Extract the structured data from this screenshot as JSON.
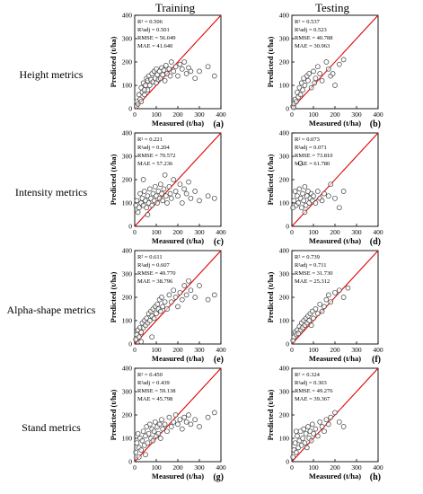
{
  "column_headers": [
    "Training",
    "Testing"
  ],
  "row_labels": [
    "Height metrics",
    "Intensity metrics",
    "Alpha-shape metrics",
    "Stand metrics"
  ],
  "axes": {
    "xlabel": "Measured (t/ha)",
    "ylabel": "Predicted (t/ha)",
    "xlim": [
      0,
      400
    ],
    "ylim": [
      0,
      400
    ],
    "ticks": [
      "0",
      "100",
      "200",
      "300",
      "400"
    ]
  },
  "colors": {
    "marker_edge": "#444444",
    "marker_fill": "#ffffff",
    "line": "#e00000"
  },
  "chart_data": [
    {
      "type": "scatter",
      "panel": "(a)",
      "stats": [
        "R² = 0.506",
        "R²adj = 0.501",
        "RMSE = 56.049",
        "MAE = 41.640"
      ],
      "reference_line": "1:1",
      "points": [
        [
          10,
          30
        ],
        [
          20,
          60
        ],
        [
          25,
          40
        ],
        [
          30,
          90
        ],
        [
          35,
          70
        ],
        [
          40,
          110
        ],
        [
          45,
          60
        ],
        [
          50,
          100
        ],
        [
          55,
          130
        ],
        [
          60,
          80
        ],
        [
          60,
          120
        ],
        [
          65,
          140
        ],
        [
          70,
          100
        ],
        [
          75,
          125
        ],
        [
          80,
          150
        ],
        [
          85,
          115
        ],
        [
          90,
          160
        ],
        [
          95,
          130
        ],
        [
          100,
          170
        ],
        [
          100,
          110
        ],
        [
          105,
          145
        ],
        [
          110,
          125
        ],
        [
          115,
          160
        ],
        [
          120,
          130
        ],
        [
          125,
          175
        ],
        [
          130,
          145
        ],
        [
          135,
          165
        ],
        [
          140,
          120
        ],
        [
          145,
          185
        ],
        [
          150,
          150
        ],
        [
          160,
          170
        ],
        [
          165,
          140
        ],
        [
          170,
          200
        ],
        [
          180,
          160
        ],
        [
          190,
          180
        ],
        [
          200,
          140
        ],
        [
          210,
          190
        ],
        [
          220,
          170
        ],
        [
          230,
          200
        ],
        [
          240,
          150
        ],
        [
          250,
          175
        ],
        [
          260,
          160
        ],
        [
          280,
          130
        ],
        [
          300,
          160
        ],
        [
          340,
          180
        ],
        [
          370,
          140
        ],
        [
          8,
          10
        ],
        [
          15,
          20
        ],
        [
          30,
          30
        ],
        [
          45,
          80
        ]
      ]
    },
    {
      "type": "scatter",
      "panel": "(b)",
      "stats": [
        "R² = 0.537",
        "R²adj = 0.523",
        "RMSE = 40.788",
        "MAE = 30.963"
      ],
      "reference_line": "1:1",
      "points": [
        [
          5,
          10
        ],
        [
          10,
          20
        ],
        [
          15,
          40
        ],
        [
          20,
          30
        ],
        [
          25,
          70
        ],
        [
          30,
          50
        ],
        [
          35,
          90
        ],
        [
          40,
          60
        ],
        [
          45,
          110
        ],
        [
          50,
          80
        ],
        [
          55,
          130
        ],
        [
          60,
          100
        ],
        [
          70,
          140
        ],
        [
          75,
          120
        ],
        [
          80,
          150
        ],
        [
          90,
          90
        ],
        [
          100,
          160
        ],
        [
          105,
          110
        ],
        [
          110,
          130
        ],
        [
          120,
          180
        ],
        [
          130,
          150
        ],
        [
          140,
          120
        ],
        [
          160,
          200
        ],
        [
          170,
          170
        ],
        [
          180,
          140
        ],
        [
          190,
          150
        ],
        [
          200,
          100
        ],
        [
          220,
          190
        ],
        [
          240,
          210
        ],
        [
          8,
          5
        ]
      ]
    },
    {
      "type": "scatter",
      "panel": "(c)",
      "stats": [
        "R² = 0.221",
        "R²adj = 0.204",
        "RMSE = 70.572",
        "MAE = 57.236"
      ],
      "reference_line": "1:1",
      "points": [
        [
          5,
          90
        ],
        [
          10,
          110
        ],
        [
          20,
          80
        ],
        [
          25,
          140
        ],
        [
          30,
          100
        ],
        [
          35,
          120
        ],
        [
          40,
          90
        ],
        [
          45,
          150
        ],
        [
          50,
          110
        ],
        [
          55,
          80
        ],
        [
          60,
          130
        ],
        [
          65,
          100
        ],
        [
          70,
          160
        ],
        [
          75,
          120
        ],
        [
          80,
          90
        ],
        [
          85,
          140
        ],
        [
          90,
          110
        ],
        [
          95,
          170
        ],
        [
          100,
          130
        ],
        [
          105,
          100
        ],
        [
          110,
          150
        ],
        [
          115,
          120
        ],
        [
          120,
          180
        ],
        [
          125,
          140
        ],
        [
          130,
          110
        ],
        [
          135,
          160
        ],
        [
          140,
          220
        ],
        [
          145,
          130
        ],
        [
          150,
          100
        ],
        [
          160,
          170
        ],
        [
          165,
          140
        ],
        [
          170,
          120
        ],
        [
          180,
          200
        ],
        [
          190,
          150
        ],
        [
          200,
          130
        ],
        [
          210,
          180
        ],
        [
          220,
          100
        ],
        [
          230,
          160
        ],
        [
          240,
          140
        ],
        [
          250,
          190
        ],
        [
          260,
          120
        ],
        [
          280,
          150
        ],
        [
          300,
          110
        ],
        [
          340,
          130
        ],
        [
          370,
          120
        ],
        [
          15,
          60
        ],
        [
          40,
          200
        ],
        [
          60,
          50
        ]
      ]
    },
    {
      "type": "scatter",
      "panel": "(d)",
      "stats": [
        "R² = 0.073",
        "R²adj = 0.071",
        "RMSE = 73.810",
        "MAE = 61.780"
      ],
      "reference_line": "1:1",
      "points": [
        [
          5,
          80
        ],
        [
          10,
          110
        ],
        [
          15,
          150
        ],
        [
          20,
          90
        ],
        [
          25,
          130
        ],
        [
          30,
          100
        ],
        [
          35,
          160
        ],
        [
          40,
          120
        ],
        [
          45,
          80
        ],
        [
          50,
          140
        ],
        [
          55,
          110
        ],
        [
          60,
          170
        ],
        [
          65,
          90
        ],
        [
          70,
          130
        ],
        [
          75,
          150
        ],
        [
          80,
          100
        ],
        [
          85,
          120
        ],
        [
          90,
          140
        ],
        [
          95,
          110
        ],
        [
          100,
          130
        ],
        [
          110,
          100
        ],
        [
          120,
          150
        ],
        [
          130,
          120
        ],
        [
          140,
          110
        ],
        [
          150,
          140
        ],
        [
          170,
          130
        ],
        [
          180,
          180
        ],
        [
          200,
          120
        ],
        [
          220,
          80
        ],
        [
          240,
          150
        ],
        [
          40,
          270
        ],
        [
          60,
          60
        ]
      ]
    },
    {
      "type": "scatter",
      "panel": "(e)",
      "stats": [
        "R² = 0.611",
        "R²adj = 0.607",
        "RMSE = 49.770",
        "MAE = 38.796"
      ],
      "reference_line": "1:1",
      "points": [
        [
          5,
          20
        ],
        [
          10,
          40
        ],
        [
          15,
          60
        ],
        [
          20,
          30
        ],
        [
          25,
          70
        ],
        [
          30,
          50
        ],
        [
          35,
          90
        ],
        [
          40,
          70
        ],
        [
          45,
          100
        ],
        [
          50,
          80
        ],
        [
          55,
          110
        ],
        [
          60,
          90
        ],
        [
          65,
          130
        ],
        [
          70,
          100
        ],
        [
          75,
          140
        ],
        [
          80,
          120
        ],
        [
          85,
          150
        ],
        [
          90,
          110
        ],
        [
          95,
          160
        ],
        [
          100,
          130
        ],
        [
          105,
          170
        ],
        [
          110,
          150
        ],
        [
          115,
          190
        ],
        [
          120,
          140
        ],
        [
          125,
          200
        ],
        [
          130,
          160
        ],
        [
          140,
          180
        ],
        [
          150,
          150
        ],
        [
          160,
          210
        ],
        [
          170,
          180
        ],
        [
          180,
          230
        ],
        [
          190,
          200
        ],
        [
          200,
          160
        ],
        [
          210,
          220
        ],
        [
          220,
          190
        ],
        [
          230,
          250
        ],
        [
          240,
          210
        ],
        [
          250,
          270
        ],
        [
          260,
          230
        ],
        [
          280,
          200
        ],
        [
          300,
          250
        ],
        [
          340,
          190
        ],
        [
          370,
          210
        ],
        [
          30,
          10
        ],
        [
          80,
          30
        ]
      ]
    },
    {
      "type": "scatter",
      "panel": "(f)",
      "stats": [
        "R² = 0.739",
        "R²adj = 0.711",
        "RMSE = 31.730",
        "MAE = 25.312"
      ],
      "reference_line": "1:1",
      "points": [
        [
          5,
          15
        ],
        [
          10,
          30
        ],
        [
          15,
          50
        ],
        [
          20,
          40
        ],
        [
          25,
          60
        ],
        [
          30,
          45
        ],
        [
          35,
          75
        ],
        [
          40,
          60
        ],
        [
          45,
          90
        ],
        [
          50,
          70
        ],
        [
          55,
          100
        ],
        [
          60,
          80
        ],
        [
          65,
          110
        ],
        [
          70,
          90
        ],
        [
          75,
          120
        ],
        [
          80,
          100
        ],
        [
          85,
          130
        ],
        [
          90,
          80
        ],
        [
          95,
          140
        ],
        [
          100,
          110
        ],
        [
          110,
          150
        ],
        [
          120,
          130
        ],
        [
          130,
          170
        ],
        [
          140,
          140
        ],
        [
          150,
          160
        ],
        [
          160,
          190
        ],
        [
          170,
          210
        ],
        [
          180,
          180
        ],
        [
          200,
          220
        ],
        [
          220,
          230
        ],
        [
          240,
          200
        ],
        [
          260,
          240
        ]
      ]
    },
    {
      "type": "scatter",
      "panel": "(g)",
      "stats": [
        "R² = 0.450",
        "R²adj = 0.439",
        "RMSE = 59.138",
        "MAE = 45.798"
      ],
      "reference_line": "1:1",
      "points": [
        [
          5,
          40
        ],
        [
          10,
          80
        ],
        [
          15,
          120
        ],
        [
          20,
          60
        ],
        [
          25,
          100
        ],
        [
          30,
          50
        ],
        [
          35,
          90
        ],
        [
          40,
          130
        ],
        [
          45,
          70
        ],
        [
          50,
          110
        ],
        [
          55,
          150
        ],
        [
          60,
          80
        ],
        [
          65,
          120
        ],
        [
          70,
          160
        ],
        [
          75,
          100
        ],
        [
          80,
          140
        ],
        [
          85,
          90
        ],
        [
          90,
          130
        ],
        [
          95,
          170
        ],
        [
          100,
          110
        ],
        [
          105,
          150
        ],
        [
          110,
          120
        ],
        [
          115,
          160
        ],
        [
          120,
          100
        ],
        [
          125,
          180
        ],
        [
          130,
          140
        ],
        [
          140,
          160
        ],
        [
          150,
          130
        ],
        [
          160,
          190
        ],
        [
          170,
          150
        ],
        [
          180,
          170
        ],
        [
          190,
          200
        ],
        [
          200,
          160
        ],
        [
          210,
          180
        ],
        [
          220,
          140
        ],
        [
          230,
          190
        ],
        [
          240,
          170
        ],
        [
          250,
          200
        ],
        [
          260,
          160
        ],
        [
          280,
          180
        ],
        [
          300,
          150
        ],
        [
          340,
          190
        ],
        [
          370,
          210
        ],
        [
          20,
          20
        ],
        [
          50,
          30
        ]
      ]
    },
    {
      "type": "scatter",
      "panel": "(h)",
      "stats": [
        "R² = 0.324",
        "R²adj = 0.303",
        "RMSE = 49.276",
        "MAE = 39.367"
      ],
      "reference_line": "1:1",
      "points": [
        [
          5,
          20
        ],
        [
          10,
          50
        ],
        [
          15,
          80
        ],
        [
          20,
          40
        ],
        [
          25,
          110
        ],
        [
          30,
          60
        ],
        [
          35,
          90
        ],
        [
          40,
          130
        ],
        [
          45,
          70
        ],
        [
          50,
          100
        ],
        [
          55,
          140
        ],
        [
          60,
          80
        ],
        [
          65,
          120
        ],
        [
          70,
          60
        ],
        [
          75,
          150
        ],
        [
          80,
          100
        ],
        [
          85,
          130
        ],
        [
          90,
          90
        ],
        [
          95,
          160
        ],
        [
          100,
          120
        ],
        [
          110,
          140
        ],
        [
          120,
          110
        ],
        [
          130,
          170
        ],
        [
          140,
          150
        ],
        [
          150,
          130
        ],
        [
          160,
          180
        ],
        [
          170,
          160
        ],
        [
          180,
          190
        ],
        [
          200,
          210
        ],
        [
          220,
          170
        ],
        [
          240,
          150
        ],
        [
          20,
          130
        ]
      ]
    }
  ]
}
